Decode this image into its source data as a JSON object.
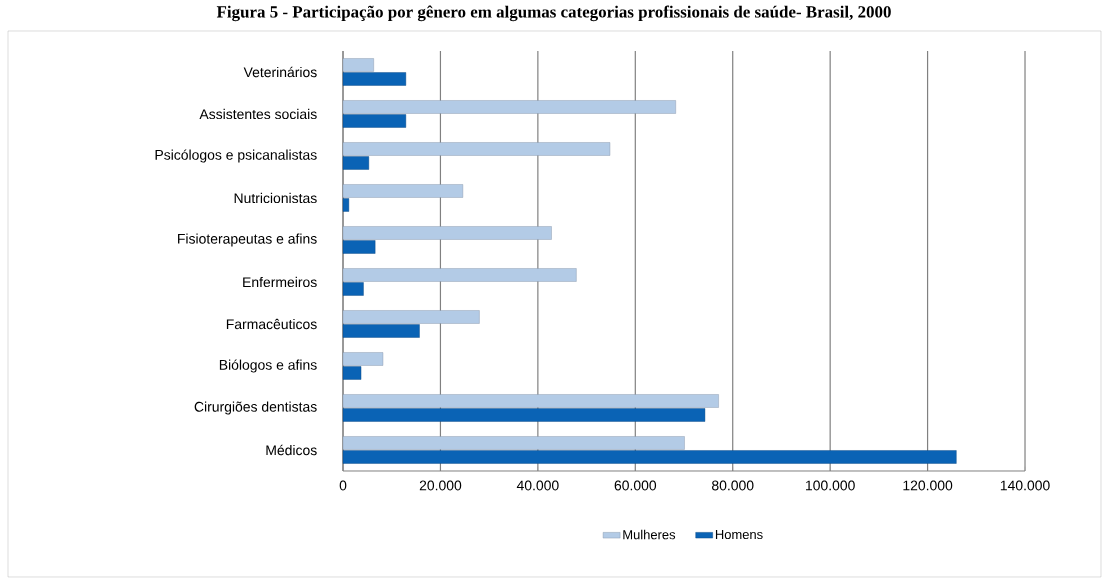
{
  "chart_data": {
    "type": "bar",
    "orientation": "horizontal",
    "title": "Figura 5 - Participação por gênero em algumas categorias profissionais de saúde- Brasil, 2000",
    "categories": [
      "Veterinários",
      "Assistentes sociais",
      "Psicólogos e psicanalistas",
      "Nutricionistas",
      "Fisioterapeutas e afins",
      "Enfermeiros",
      "Farmacêuticos",
      "Biólogos e afins",
      "Cirurgiões dentistas",
      "Médicos"
    ],
    "series": [
      {
        "name": "Mulheres",
        "color": "#b3cbe6",
        "values": [
          6300,
          68300,
          54800,
          24600,
          42800,
          47900,
          28000,
          8200,
          77100,
          70100
        ]
      },
      {
        "name": "Homens",
        "color": "#0a63b5",
        "values": [
          12900,
          12900,
          5300,
          1200,
          6600,
          4200,
          15700,
          3700,
          74300,
          125900
        ]
      }
    ],
    "xlim": [
      0,
      140000
    ],
    "xticks": [
      0,
      {
        "value": 20000,
        "label": "20.000"
      },
      {
        "value": 40000,
        "label": "40.000"
      },
      {
        "value": 60000,
        "label": "60.000"
      },
      {
        "value": 80000,
        "label": "80.000"
      },
      {
        "value": 100000,
        "label": "100.000"
      },
      {
        "value": 120000,
        "label": "120.000"
      },
      {
        "value": 140000,
        "label": "140.000"
      }
    ],
    "grid": "x",
    "legend": "bottom"
  }
}
